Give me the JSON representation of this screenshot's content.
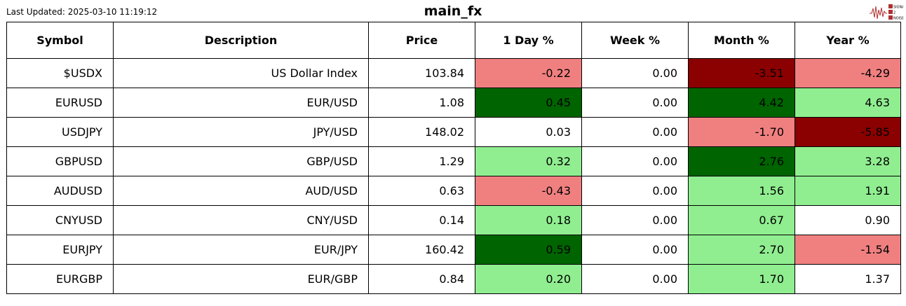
{
  "last_updated": "Last Updated: 2025-03-10 11:19:12",
  "title": "main_fx",
  "logo_text": [
    "SIGNAL",
    "2",
    "NOISE"
  ],
  "colors": {
    "strong_neg": "#8b0000",
    "neg": "#f08080",
    "neutral": "#ffffff",
    "pos": "#90ee90",
    "strong_pos": "#006400"
  },
  "chart_data": {
    "type": "table",
    "title": "main_fx",
    "columns": [
      "Symbol",
      "Description",
      "Price",
      "1 Day %",
      "Week %",
      "Month %",
      "Year %"
    ],
    "rows": [
      {
        "cells": [
          "$USDX",
          "US Dollar Index",
          "103.84",
          "-0.22",
          "0.00",
          "-3.51",
          "-4.29"
        ],
        "colors": [
          "neg",
          "neutral",
          "strong_neg",
          "neg"
        ]
      },
      {
        "cells": [
          "EURUSD",
          "EUR/USD",
          "1.08",
          "0.45",
          "0.00",
          "4.42",
          "4.63"
        ],
        "colors": [
          "strong_pos",
          "neutral",
          "strong_pos",
          "pos"
        ]
      },
      {
        "cells": [
          "USDJPY",
          "JPY/USD",
          "148.02",
          "0.03",
          "0.00",
          "-1.70",
          "-5.85"
        ],
        "colors": [
          "neutral",
          "neutral",
          "neg",
          "strong_neg"
        ]
      },
      {
        "cells": [
          "GBPUSD",
          "GBP/USD",
          "1.29",
          "0.32",
          "0.00",
          "2.76",
          "3.28"
        ],
        "colors": [
          "pos",
          "neutral",
          "strong_pos",
          "pos"
        ]
      },
      {
        "cells": [
          "AUDUSD",
          "AUD/USD",
          "0.63",
          "-0.43",
          "0.00",
          "1.56",
          "1.91"
        ],
        "colors": [
          "neg",
          "neutral",
          "pos",
          "pos"
        ]
      },
      {
        "cells": [
          "CNYUSD",
          "CNY/USD",
          "0.14",
          "0.18",
          "0.00",
          "0.67",
          "0.90"
        ],
        "colors": [
          "pos",
          "neutral",
          "pos",
          "neutral"
        ]
      },
      {
        "cells": [
          "EURJPY",
          "EUR/JPY",
          "160.42",
          "0.59",
          "0.00",
          "2.70",
          "-1.54"
        ],
        "colors": [
          "strong_pos",
          "neutral",
          "pos",
          "neg"
        ]
      },
      {
        "cells": [
          "EURGBP",
          "EUR/GBP",
          "0.84",
          "0.20",
          "0.00",
          "1.70",
          "1.37"
        ],
        "colors": [
          "pos",
          "neutral",
          "pos",
          "neutral"
        ]
      }
    ]
  }
}
